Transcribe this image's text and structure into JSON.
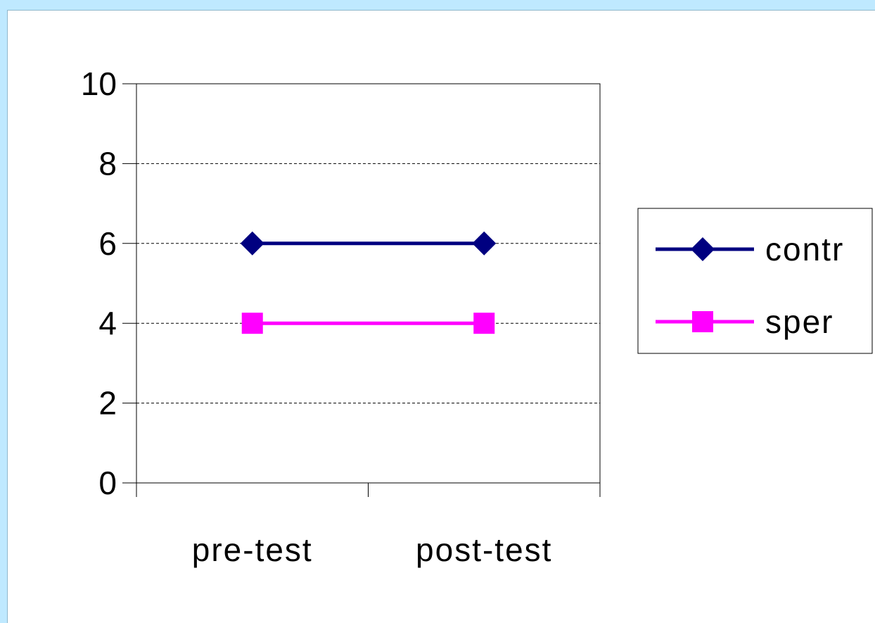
{
  "chart_data": {
    "type": "line",
    "categories": [
      "pre-test",
      "post-test"
    ],
    "series": [
      {
        "name": "contr",
        "values": [
          6,
          6
        ],
        "color": "#000080",
        "marker": "diamond"
      },
      {
        "name": "sper",
        "values": [
          4,
          4
        ],
        "color": "#ff00ff",
        "marker": "square"
      }
    ],
    "ylim": [
      0,
      10
    ],
    "yticks": [
      0,
      2,
      4,
      6,
      8,
      10
    ],
    "grid": true,
    "legend_position": "right"
  }
}
